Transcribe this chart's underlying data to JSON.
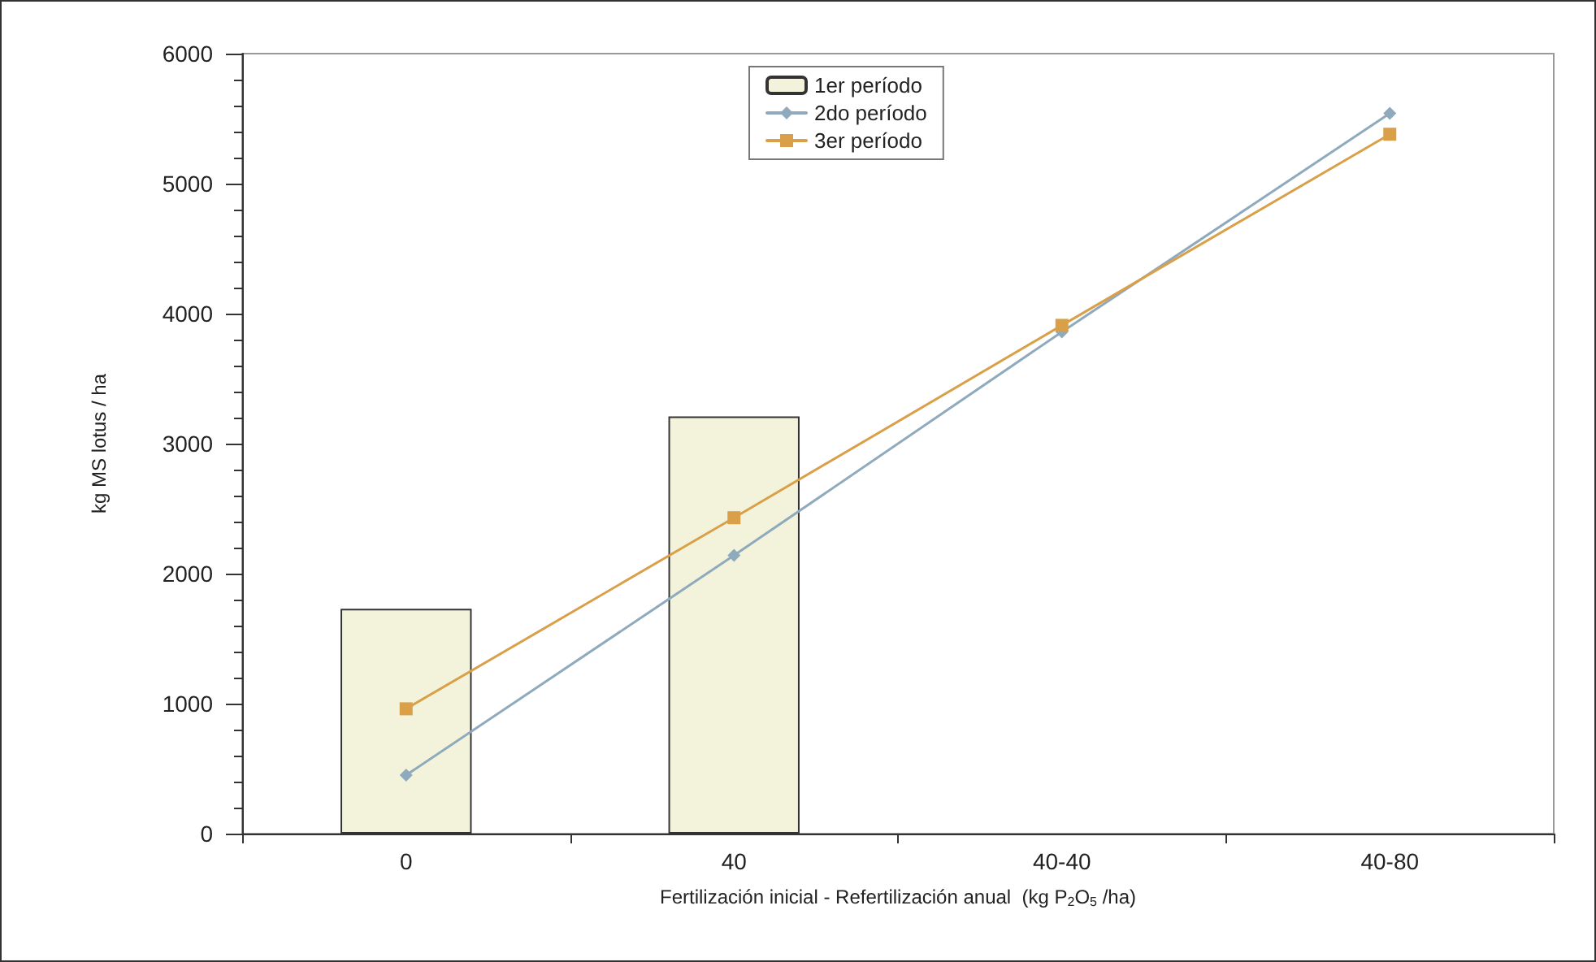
{
  "chart_data": {
    "type": "bar",
    "xlabel": "Fertilización inicial - Refertilización anual  (kg P$_{2}$O$_{5}$ /ha)",
    "ylabel": "kg MS lotus / ha",
    "categories": [
      "0",
      "40",
      "40-40",
      "40-80"
    ],
    "series": [
      {
        "name": "1er período",
        "color": "#f3f3dc",
        "values": [
          1730,
          3210,
          null,
          null
        ]
      },
      {
        "name": "2do período",
        "type": "line",
        "color": "#8fa9bd",
        "marker": "diamond",
        "values": [
          450,
          2140,
          3860,
          5540
        ]
      },
      {
        "name": "3er período",
        "type": "line",
        "color": "#d9a049",
        "marker": "square",
        "values": [
          960,
          2430,
          3910,
          5380
        ]
      }
    ],
    "ylim": [
      0,
      6000
    ],
    "yticks": [
      0,
      1000,
      2000,
      3000,
      4000,
      5000,
      6000
    ],
    "grid": false,
    "legend": "top",
    "line_style": "solid"
  }
}
